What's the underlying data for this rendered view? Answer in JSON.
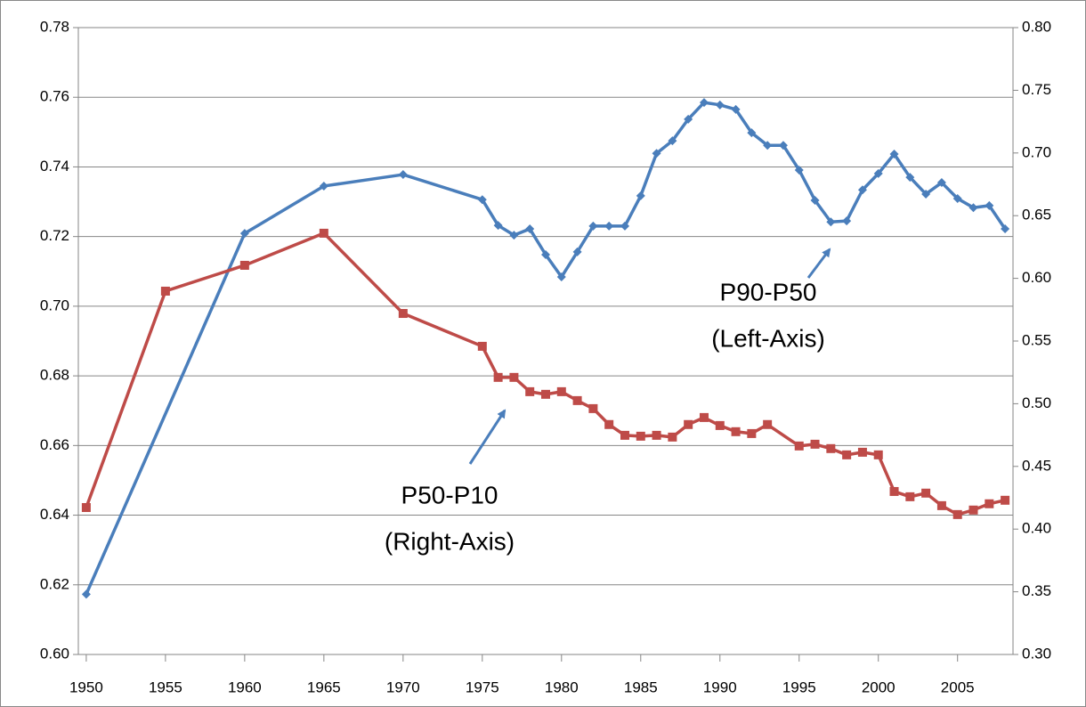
{
  "chart_data": {
    "type": "line",
    "xlim": [
      1949.5,
      2008.5
    ],
    "xticks": [
      1950,
      1955,
      1960,
      1965,
      1970,
      1975,
      1980,
      1985,
      1990,
      1995,
      2000,
      2005
    ],
    "ylim": [
      0.6,
      0.78
    ],
    "yticks": [
      {
        "value": 0.6,
        "label": "0.60"
      },
      0.62,
      0.64,
      0.66,
      0.68,
      {
        "value": 0.7,
        "label": "0.70"
      },
      0.72,
      0.74,
      0.76,
      0.78
    ],
    "y2lim": [
      0.3,
      0.8
    ],
    "y2ticks": [
      {
        "value": 0.3,
        "label": "0.30"
      },
      0.35,
      {
        "value": 0.4,
        "label": "0.40"
      },
      0.45,
      {
        "value": 0.5,
        "label": "0.50"
      },
      0.55,
      {
        "value": 0.6,
        "label": "0.60"
      },
      0.65,
      {
        "value": 0.7,
        "label": "0.70"
      },
      0.75,
      {
        "value": 0.8,
        "label": "0.80"
      }
    ],
    "grid": true,
    "series": [
      {
        "name": "P90-P50",
        "color": "#4a7ebb",
        "marker": "diamond",
        "x": [
          1950,
          1960,
          1965,
          1970,
          1975,
          1976,
          1977,
          1978,
          1979,
          1980,
          1981,
          1982,
          1983,
          1984,
          1985,
          1986,
          1987,
          1988,
          1989,
          1990,
          1991,
          1992,
          1993,
          1994,
          1995,
          1996,
          1997,
          1998,
          1999,
          2000,
          2001,
          2002,
          2003,
          2004,
          2005,
          2006,
          2007,
          2008
        ],
        "values": [
          0.6173,
          0.7209,
          0.7345,
          0.7378,
          0.7306,
          0.7232,
          0.7204,
          0.7222,
          0.7148,
          0.7084,
          0.7156,
          0.723,
          0.723,
          0.723,
          0.7317,
          0.7439,
          0.7475,
          0.7537,
          0.7585,
          0.7578,
          0.7565,
          0.7498,
          0.7462,
          0.7462,
          0.7391,
          0.7304,
          0.7242,
          0.7245,
          0.7334,
          0.7381,
          0.7437,
          0.737,
          0.7322,
          0.7355,
          0.7309,
          0.7283,
          0.7289,
          0.7222
        ]
      },
      {
        "name": "P50-P10",
        "color": "#be4b48",
        "marker": "square",
        "axis": "y2",
        "x": [
          1950,
          1955,
          1960,
          1965,
          1970,
          1975,
          1976,
          1977,
          1978,
          1979,
          1980,
          1981,
          1982,
          1983,
          1984,
          1985,
          1986,
          1987,
          1988,
          1989,
          1990,
          1991,
          1992,
          1993,
          1995,
          1996,
          1997,
          1998,
          1999,
          2000,
          2001,
          2002,
          2003,
          2004,
          2005,
          2006,
          2007,
          2008
        ],
        "values": [
          0.4172,
          0.5898,
          0.6104,
          0.636,
          0.572,
          0.5458,
          0.521,
          0.521,
          0.5096,
          0.5075,
          0.5096,
          0.5025,
          0.4961,
          0.4834,
          0.4748,
          0.4741,
          0.4748,
          0.4734,
          0.4834,
          0.489,
          0.4826,
          0.4777,
          0.4762,
          0.4834,
          0.4663,
          0.4677,
          0.4642,
          0.4592,
          0.4613,
          0.4592,
          0.43,
          0.4258,
          0.4287,
          0.4187,
          0.4116,
          0.4152,
          0.4202,
          0.423
        ]
      }
    ],
    "annotations": [
      {
        "lines": [
          "P90-P50",
          "(Left-Axis)"
        ]
      },
      {
        "lines": [
          "P50-P10",
          "(Right-Axis)"
        ]
      }
    ]
  }
}
